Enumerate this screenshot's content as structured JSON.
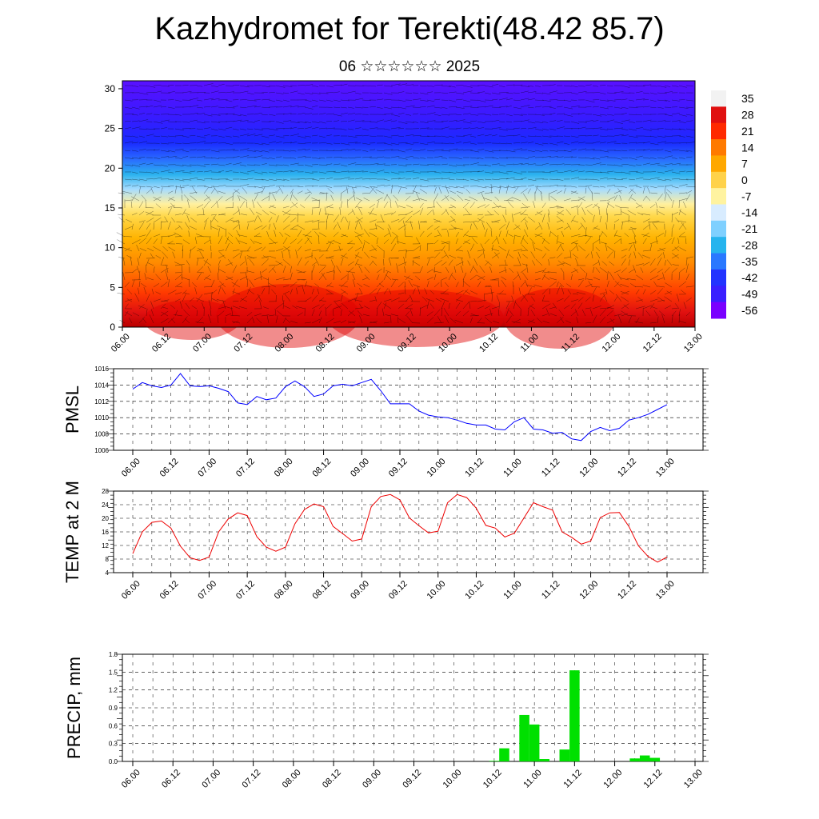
{
  "title": "Kazhydromet for Terekti(48.42 85.7)",
  "subtitle": "06 ☆☆☆☆☆☆ 2025",
  "colorbar": {
    "labels": [
      "35",
      "28",
      "21",
      "14",
      "7",
      "0",
      "-7",
      "-14",
      "-21",
      "-28",
      "-35",
      "-42",
      "-49",
      "-56"
    ],
    "colors": [
      "#f2f2f2",
      "#e01010",
      "#ff2a00",
      "#ff7a00",
      "#ffa800",
      "#ffd24a",
      "#fff3a0",
      "#d8ecff",
      "#7fd0ff",
      "#26b4ee",
      "#2a78ff",
      "#2233ff",
      "#3a1fff",
      "#7a00ff"
    ]
  },
  "chart_data": [
    {
      "type": "heatmap",
      "name": "cross-section",
      "x_ticks": [
        "06.00",
        "06.12",
        "07.00",
        "07.12",
        "08.00",
        "08.12",
        "09.00",
        "09.12",
        "10.00",
        "10.12",
        "11.00",
        "11.12",
        "12.00",
        "12.12",
        "13.00"
      ],
      "y_ticks": [
        "0",
        "5",
        "10",
        "15",
        "20",
        "25",
        "30"
      ],
      "ylim": [
        0,
        31
      ]
    },
    {
      "type": "line",
      "ylabel": "PMSL",
      "ylim": [
        1006,
        1016
      ],
      "y_ticks": [
        "1016",
        "1014",
        "1012",
        "1010",
        "1008",
        "1006"
      ],
      "x_ticks": [
        "06.00",
        "06.12",
        "07.00",
        "07.12",
        "08.00",
        "08.12",
        "09.00",
        "09.12",
        "10.00",
        "10.12",
        "11.00",
        "11.12",
        "12.00",
        "12.12",
        "13.00"
      ],
      "color": "#0000ff",
      "values": [
        1013.5,
        1014.3,
        1013.9,
        1013.7,
        1014.0,
        1015.4,
        1013.9,
        1013.8,
        1013.9,
        1013.6,
        1013.2,
        1011.8,
        1011.6,
        1012.6,
        1012.2,
        1012.4,
        1013.8,
        1014.5,
        1013.8,
        1012.6,
        1012.9,
        1013.9,
        1014.1,
        1013.9,
        1014.3,
        1014.7,
        1013.3,
        1011.7,
        1011.7,
        1011.7,
        1010.8,
        1010.3,
        1010.1,
        1010.0,
        1009.7,
        1009.3,
        1009.1,
        1009.1,
        1008.6,
        1008.5,
        1009.5,
        1010.0,
        1008.6,
        1008.5,
        1008.1,
        1008.2,
        1007.4,
        1007.2,
        1008.3,
        1008.8,
        1008.4,
        1008.7,
        1009.7,
        1010.0,
        1010.4,
        1011.0,
        1011.6
      ]
    },
    {
      "type": "line",
      "ylabel": "TEMP at 2 M",
      "ylim": [
        4,
        28
      ],
      "y_ticks": [
        "28",
        "24",
        "20",
        "16",
        "12",
        "8",
        "4"
      ],
      "x_ticks": [
        "06.00",
        "06.12",
        "07.00",
        "07.12",
        "08.00",
        "08.12",
        "09.00",
        "09.12",
        "10.00",
        "10.12",
        "11.00",
        "11.12",
        "12.00",
        "12.12",
        "13.00"
      ],
      "color": "#ee0000",
      "values": [
        9.6,
        16.0,
        18.8,
        19.2,
        17.1,
        11.8,
        8.4,
        7.6,
        8.6,
        16.0,
        19.8,
        21.6,
        20.8,
        14.6,
        11.5,
        10.3,
        11.5,
        18.4,
        22.6,
        24.2,
        23.4,
        17.6,
        15.5,
        13.3,
        13.9,
        23.4,
        26.4,
        27.0,
        25.4,
        20.1,
        17.8,
        15.7,
        16.2,
        24.6,
        27.0,
        26.1,
        23.0,
        17.9,
        17.1,
        14.5,
        15.6,
        20.1,
        24.6,
        23.4,
        22.4,
        16.0,
        14.4,
        12.4,
        13.3,
        20.2,
        21.6,
        21.7,
        17.6,
        11.9,
        8.8,
        7.1,
        8.6
      ]
    },
    {
      "type": "bar",
      "ylabel": "PRECIP, mm",
      "ylim": [
        0,
        1.8
      ],
      "y_ticks": [
        "1.8",
        "1.5",
        "1.2",
        "0.9",
        "0.6",
        "0.3",
        "0.0"
      ],
      "x_ticks": [
        "06.00",
        "06.12",
        "07.00",
        "07.12",
        "08.00",
        "08.12",
        "09.00",
        "09.12",
        "10.00",
        "10.12",
        "11.00",
        "11.12",
        "12.00",
        "12.12",
        "13.00"
      ],
      "color": "#00e000",
      "values": [
        0,
        0,
        0,
        0,
        0,
        0,
        0,
        0,
        0,
        0,
        0,
        0,
        0,
        0,
        0,
        0,
        0,
        0,
        0,
        0,
        0,
        0,
        0,
        0,
        0,
        0,
        0,
        0,
        0,
        0,
        0,
        0,
        0,
        0,
        0,
        0,
        0.01,
        0.22,
        0,
        0.78,
        0.62,
        0.04,
        0,
        0.2,
        1.53,
        0,
        0,
        0,
        0,
        0,
        0.05,
        0.1,
        0.06,
        0,
        0,
        0,
        0
      ]
    }
  ]
}
